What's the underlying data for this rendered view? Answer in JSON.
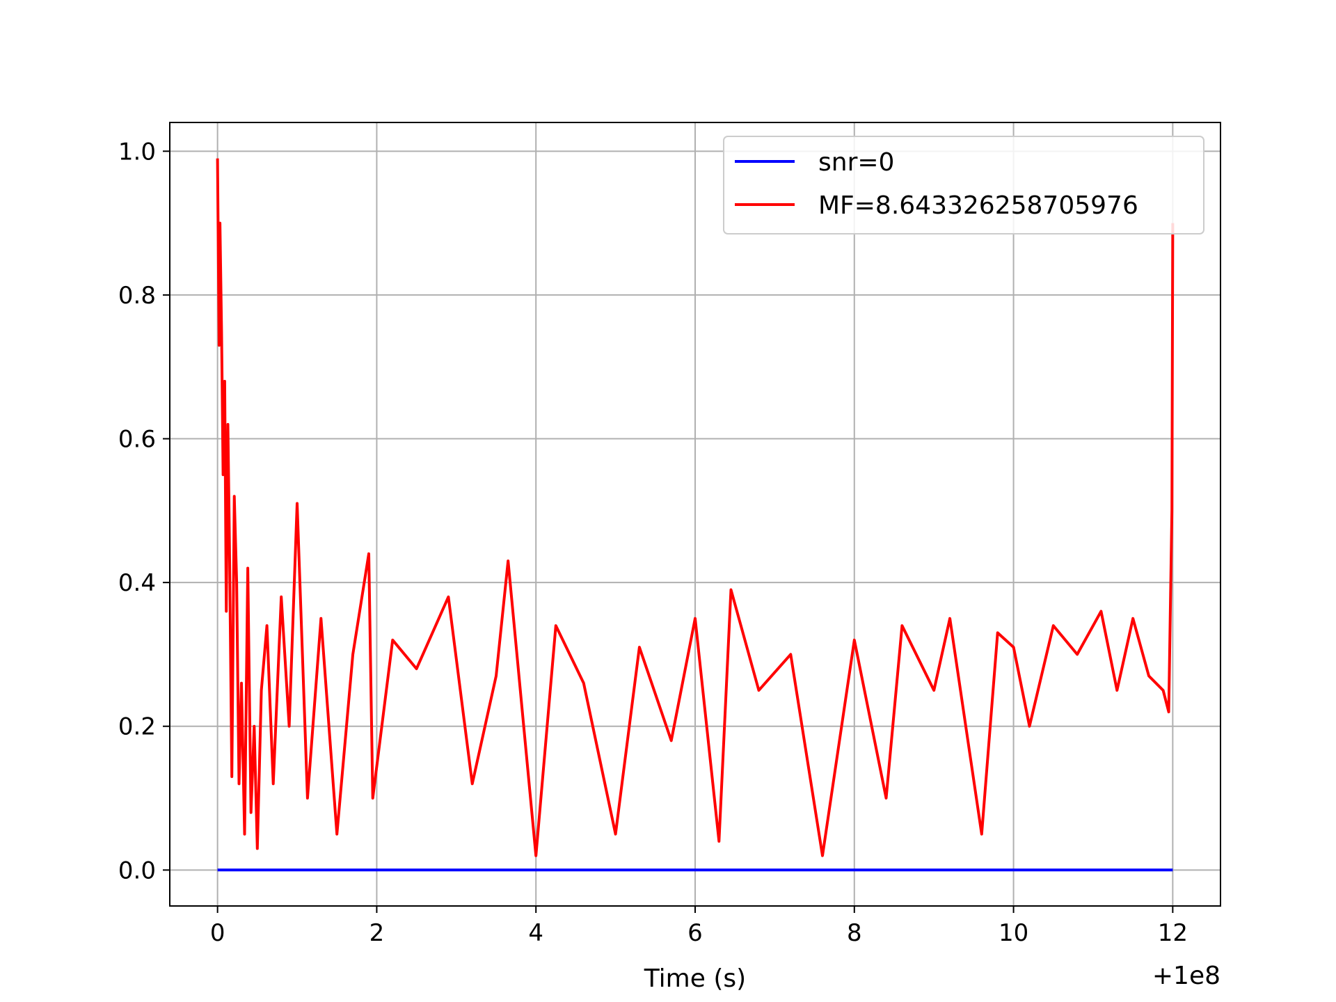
{
  "chart_data": {
    "type": "line",
    "title": "",
    "xlabel": "Time (s)",
    "ylabel": "",
    "x_offset_label": "+1e8",
    "xlim": [
      -0.6,
      12.6
    ],
    "ylim": [
      -0.05,
      1.04
    ],
    "xticks": [
      0,
      2,
      4,
      6,
      8,
      10,
      12
    ],
    "xtick_labels": [
      "0",
      "2",
      "4",
      "6",
      "8",
      "10",
      "12"
    ],
    "yticks": [
      0.0,
      0.2,
      0.4,
      0.6,
      0.8,
      1.0
    ],
    "ytick_labels": [
      "0.0",
      "0.2",
      "0.4",
      "0.6",
      "0.8",
      "1.0"
    ],
    "grid": true,
    "legend_position": "top-right",
    "series": [
      {
        "name": "snr=0",
        "color": "#0000ff",
        "x": [
          0,
          12
        ],
        "y": [
          0,
          0
        ]
      },
      {
        "name": "MF=8.643326258705976",
        "color": "#ff0000",
        "x": [
          0.0,
          0.02,
          0.03,
          0.05,
          0.07,
          0.09,
          0.11,
          0.13,
          0.15,
          0.18,
          0.21,
          0.24,
          0.27,
          0.3,
          0.34,
          0.38,
          0.42,
          0.46,
          0.5,
          0.55,
          0.62,
          0.7,
          0.8,
          0.9,
          1.0,
          1.13,
          1.3,
          1.5,
          1.7,
          1.9,
          1.95,
          2.2,
          2.5,
          2.9,
          3.2,
          3.5,
          3.65,
          4.0,
          4.25,
          4.6,
          5.0,
          5.3,
          5.7,
          6.0,
          6.3,
          6.45,
          6.8,
          7.2,
          7.6,
          8.0,
          8.4,
          8.6,
          9.0,
          9.2,
          9.6,
          9.8,
          10.0,
          10.2,
          10.5,
          10.8,
          11.1,
          11.3,
          11.5,
          11.7,
          11.88,
          11.95,
          11.99,
          12.0
        ],
        "y": [
          0.99,
          0.73,
          0.9,
          0.75,
          0.55,
          0.68,
          0.36,
          0.62,
          0.45,
          0.13,
          0.52,
          0.4,
          0.12,
          0.26,
          0.05,
          0.42,
          0.08,
          0.2,
          0.03,
          0.25,
          0.34,
          0.12,
          0.38,
          0.2,
          0.51,
          0.1,
          0.35,
          0.05,
          0.3,
          0.44,
          0.1,
          0.32,
          0.28,
          0.38,
          0.12,
          0.27,
          0.43,
          0.02,
          0.34,
          0.26,
          0.05,
          0.31,
          0.18,
          0.35,
          0.04,
          0.39,
          0.25,
          0.3,
          0.02,
          0.32,
          0.1,
          0.34,
          0.25,
          0.35,
          0.05,
          0.33,
          0.31,
          0.2,
          0.34,
          0.3,
          0.36,
          0.25,
          0.35,
          0.27,
          0.25,
          0.22,
          0.5,
          0.9
        ]
      }
    ]
  }
}
